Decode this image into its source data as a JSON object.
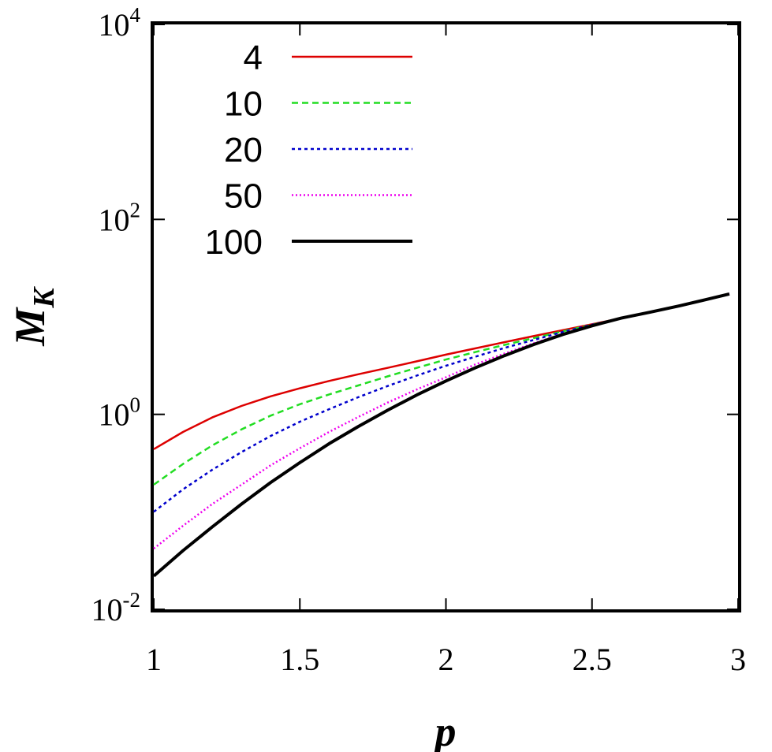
{
  "chart_data": {
    "type": "line",
    "xlabel": "p",
    "ylabel": "M",
    "ylabel_sub": "K",
    "xlim": [
      1,
      3
    ],
    "ylim": [
      0.01,
      10000
    ],
    "yscale": "log",
    "grid": false,
    "legend_position": "top-left",
    "x_ticks": [
      {
        "value": 1,
        "label": "1"
      },
      {
        "value": 1.5,
        "label": "1.5"
      },
      {
        "value": 2,
        "label": "2"
      },
      {
        "value": 2.5,
        "label": "2.5"
      },
      {
        "value": 3,
        "label": "3"
      }
    ],
    "y_ticks": [
      {
        "value": 0.01,
        "base": "10",
        "exp": "-2"
      },
      {
        "value": 1,
        "base": "10",
        "exp": "0"
      },
      {
        "value": 100,
        "base": "10",
        "exp": "2"
      },
      {
        "value": 10000,
        "base": "10",
        "exp": "4"
      }
    ],
    "x": [
      1.0,
      1.1,
      1.2,
      1.3,
      1.4,
      1.5,
      1.6,
      1.7,
      1.8,
      1.9,
      2.0,
      2.1,
      2.2,
      2.3,
      2.4,
      2.5,
      2.6,
      2.7,
      2.8,
      2.9,
      2.97
    ],
    "series": [
      {
        "name": "4",
        "color": "#dd0000",
        "dash": "",
        "width": 2.5,
        "values": [
          0.44,
          0.66,
          0.93,
          1.22,
          1.53,
          1.85,
          2.2,
          2.58,
          3.0,
          3.5,
          4.1,
          4.75,
          5.5,
          6.35,
          7.3,
          8.4,
          9.7,
          11.2,
          13.0,
          15.3,
          17.2
        ]
      },
      {
        "name": "10",
        "color": "#22dd22",
        "dash": "8,5",
        "width": 2.5,
        "values": [
          0.19,
          0.31,
          0.48,
          0.7,
          0.97,
          1.27,
          1.6,
          1.98,
          2.45,
          3.0,
          3.65,
          4.35,
          5.15,
          6.05,
          7.1,
          8.3,
          9.7,
          11.2,
          13.0,
          15.3,
          17.2
        ]
      },
      {
        "name": "20",
        "color": "#0000cc",
        "dash": "4,4",
        "width": 2.5,
        "values": [
          0.1,
          0.17,
          0.27,
          0.41,
          0.6,
          0.84,
          1.13,
          1.5,
          1.95,
          2.5,
          3.15,
          3.9,
          4.8,
          5.8,
          7.0,
          8.3,
          9.7,
          11.2,
          13.0,
          15.3,
          17.2
        ]
      },
      {
        "name": "50",
        "color": "#ee00ee",
        "dash": "2,3",
        "width": 2.5,
        "values": [
          0.042,
          0.072,
          0.12,
          0.19,
          0.3,
          0.45,
          0.66,
          0.94,
          1.32,
          1.8,
          2.4,
          3.25,
          4.2,
          5.35,
          6.7,
          8.2,
          9.7,
          11.2,
          13.0,
          15.3,
          17.2
        ]
      },
      {
        "name": "100",
        "color": "#000000",
        "dash": "",
        "width": 4,
        "values": [
          0.022,
          0.04,
          0.07,
          0.12,
          0.2,
          0.32,
          0.5,
          0.75,
          1.1,
          1.58,
          2.2,
          3.0,
          4.0,
          5.2,
          6.6,
          8.1,
          9.7,
          11.2,
          13.0,
          15.3,
          17.2
        ]
      }
    ]
  }
}
